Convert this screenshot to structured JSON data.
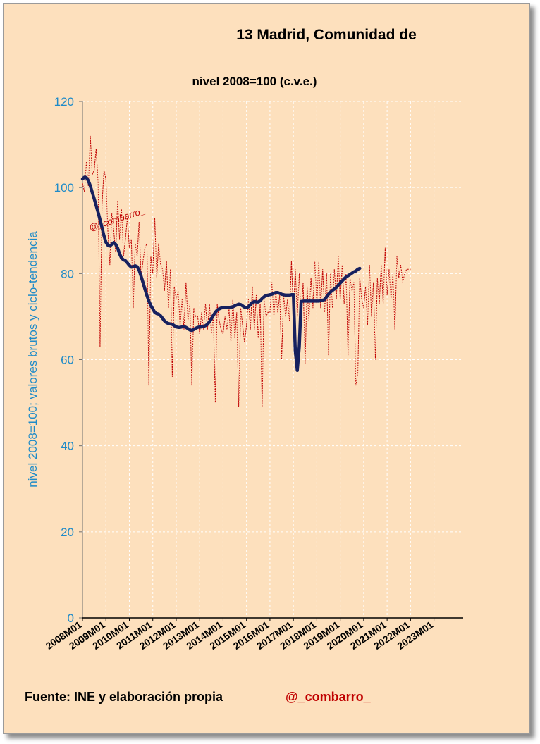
{
  "chart_data": {
    "type": "line",
    "title": "13 Madrid, Comunidad  de",
    "subtitle": "nivel 2008=100  (c.v.e.)",
    "ylabel": "nivel 2008=100; valores brutos y ciclo-tendencia",
    "ylim": [
      0,
      120
    ],
    "yticks": [
      "0",
      "20",
      "40",
      "60",
      "80",
      "100",
      "120"
    ],
    "x_tick_labels": [
      "2008M01",
      "2009M01",
      "2010M01",
      "2011M01",
      "2012M01",
      "2013M01",
      "2014M01",
      "2015M01",
      "2016M01",
      "2017M01",
      "2018M01",
      "2019M01",
      "2020M01",
      "2021M01",
      "2022M01",
      "2023M01"
    ],
    "x_start": "2008M01",
    "grid": true,
    "watermark": "@_combarro_",
    "series": [
      {
        "style": "thin dotted dark red",
        "values": [
          101,
          99,
          106,
          100,
          112,
          103,
          104,
          109,
          101,
          63,
          96,
          104,
          102,
          90,
          82,
          94,
          90,
          85,
          97,
          88,
          95,
          84,
          88,
          93,
          86,
          88,
          72,
          87,
          84,
          92,
          79,
          83,
          86,
          87,
          54,
          84,
          80,
          93,
          79,
          87,
          82,
          81,
          76,
          83,
          72,
          81,
          56,
          77,
          74,
          76,
          68,
          74,
          67,
          78,
          69,
          73,
          54,
          72,
          70,
          70,
          66,
          71,
          67,
          73,
          67,
          73,
          66,
          70,
          50,
          73,
          69,
          67,
          66,
          70,
          67,
          72,
          64,
          74,
          65,
          71,
          49,
          72,
          68,
          64,
          68,
          74,
          67,
          77,
          67,
          75,
          65,
          73,
          49,
          74,
          70,
          71,
          71,
          78,
          70,
          76,
          71,
          75,
          60,
          75,
          70,
          74,
          69,
          83,
          71,
          81,
          70,
          80,
          69,
          78,
          59,
          77,
          69,
          79,
          72,
          83,
          73,
          83,
          72,
          81,
          71,
          80,
          61,
          80,
          72,
          81,
          74,
          84,
          74,
          82,
          73,
          80,
          61,
          79,
          76,
          78,
          54,
          57,
          79,
          74,
          72,
          77,
          68,
          82,
          70,
          78,
          60,
          79,
          73,
          82,
          73,
          86,
          75,
          81,
          74,
          80,
          67,
          84,
          79,
          82,
          78,
          80,
          81,
          81,
          81
        ]
      },
      {
        "style": "thick navy",
        "values": [
          102,
          102.4,
          102.3,
          101.6,
          100.4,
          98.9,
          97.4,
          95.8,
          94.2,
          92.5,
          90.7,
          88.8,
          87.3,
          86.6,
          86.4,
          86.8,
          87.2,
          86.8,
          85.9,
          84.6,
          83.6,
          83.2,
          83.0,
          82.5,
          81.9,
          81.5,
          81.6,
          81.8,
          81.6,
          80.8,
          79.4,
          77.9,
          76.4,
          74.9,
          73.6,
          72.6,
          71.8,
          71.0,
          70.7,
          70.6,
          70.2,
          69.6,
          69.0,
          68.6,
          68.4,
          68.3,
          68.2,
          67.9,
          67.6,
          67.5,
          67.5,
          67.6,
          67.7,
          67.5,
          67.2,
          66.9,
          66.8,
          67.0,
          67.3,
          67.5,
          67.6,
          67.6,
          67.7,
          67.9,
          68.2,
          68.8,
          69.5,
          70.3,
          71.0,
          71.5,
          71.8,
          72.0,
          72.1,
          72.1,
          72.1,
          72.1,
          72.2,
          72.3,
          72.5,
          72.7,
          72.9,
          72.8,
          72.5,
          72.2,
          72.1,
          72.3,
          72.8,
          73.3,
          73.5,
          73.4,
          73.4,
          73.7,
          74.2,
          74.6,
          74.9,
          75.0,
          75.1,
          75.2,
          75.4,
          75.6,
          75.6,
          75.4,
          75.2,
          75.1,
          75.0,
          75.0,
          75.0,
          75.1,
          75.1,
          62.0,
          57.5,
          63.0,
          73.5,
          73.6,
          73.6,
          73.6,
          73.6,
          73.6,
          73.6,
          73.6,
          73.6,
          73.6,
          73.7,
          73.8,
          74.0,
          74.6,
          75.2,
          75.7,
          76.1,
          76.4,
          76.8,
          77.3,
          77.8,
          78.3,
          78.8,
          79.2,
          79.5,
          79.8,
          80.1,
          80.4,
          80.6,
          81.0,
          81.2
        ]
      }
    ]
  },
  "footer": {
    "source": "Fuente: INE  y elaboración propia",
    "handle": "@_combarro_"
  },
  "colors": {
    "background": "#fde0bd",
    "axis_text": "#1f8bc8",
    "raw_series": "#c00000",
    "trend_series": "#17215f",
    "watermark": "#c00000"
  }
}
